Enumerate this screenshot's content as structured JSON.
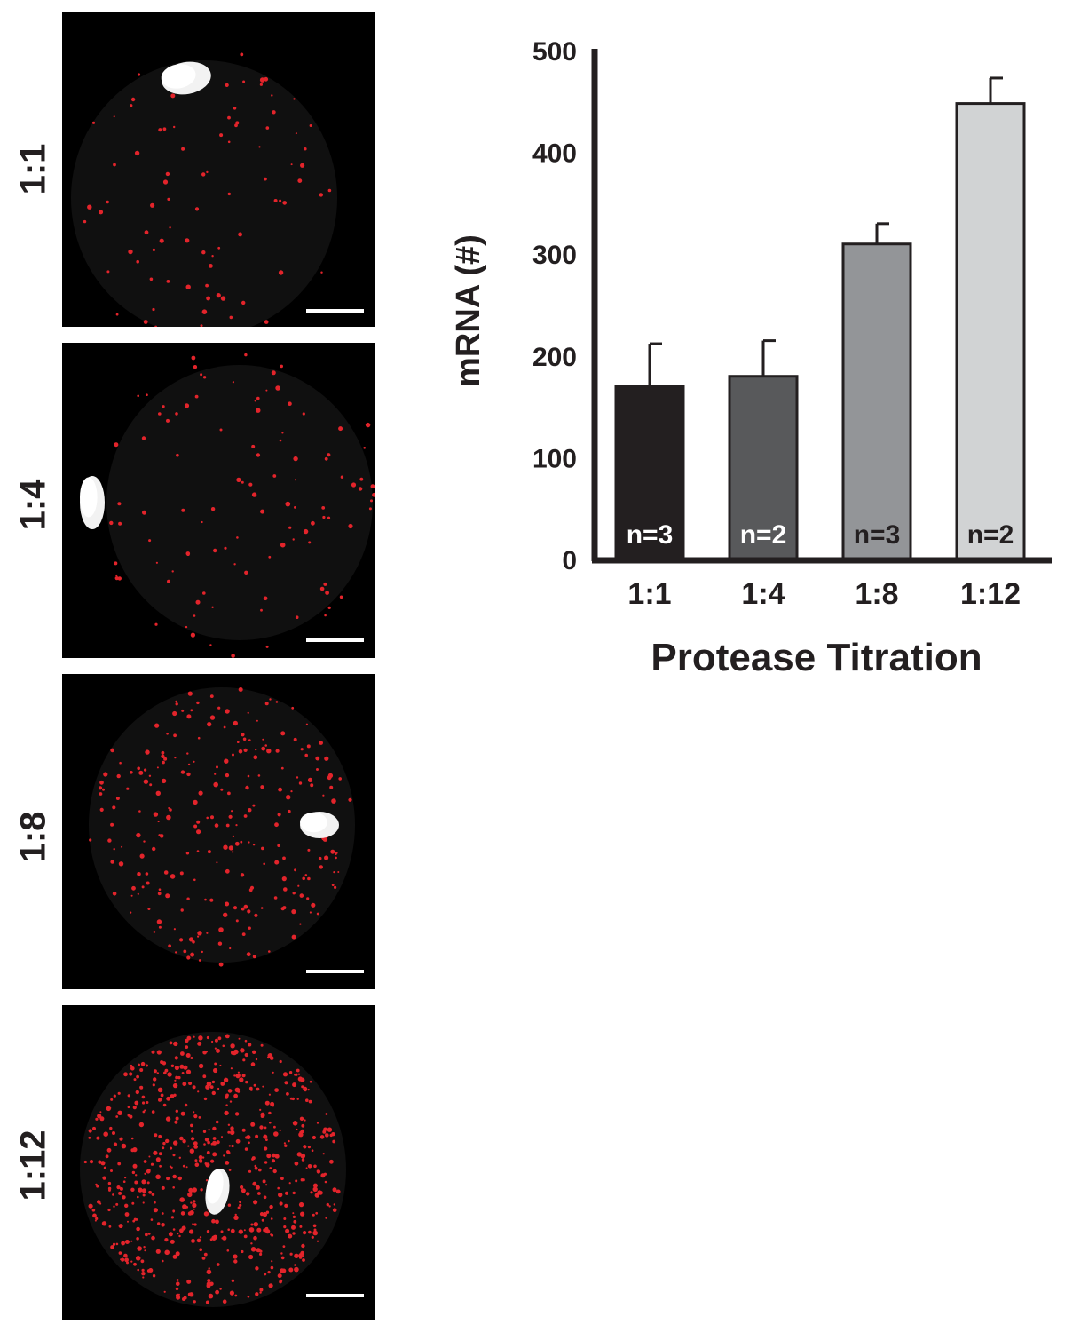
{
  "panels": [
    {
      "label": "1:1"
    },
    {
      "label": "1:4"
    },
    {
      "label": "1:8"
    },
    {
      "label": "1:12"
    }
  ],
  "colors": {
    "dots": "#e3242b",
    "nucleus": "#f2f2f2",
    "panel_bg": "#000000",
    "axis": "#231f20"
  },
  "chart_data": {
    "type": "bar",
    "categories": [
      "1:1",
      "1:4",
      "1:8",
      "1:12"
    ],
    "values": [
      170,
      180,
      310,
      448
    ],
    "errors": [
      42,
      35,
      20,
      25
    ],
    "n_labels": [
      "n=3",
      "n=2",
      "n=3",
      "n=2"
    ],
    "bar_colors": [
      "#231f20",
      "#58595b",
      "#939598",
      "#d1d3d4"
    ],
    "n_label_colors": [
      "#ffffff",
      "#ffffff",
      "#231f20",
      "#231f20"
    ],
    "xlabel": "Protease Titration",
    "ylabel": "mRNA (#)",
    "ylim": [
      0,
      500
    ],
    "yticks": [
      0,
      100,
      200,
      300,
      400,
      500
    ],
    "grid": false
  }
}
